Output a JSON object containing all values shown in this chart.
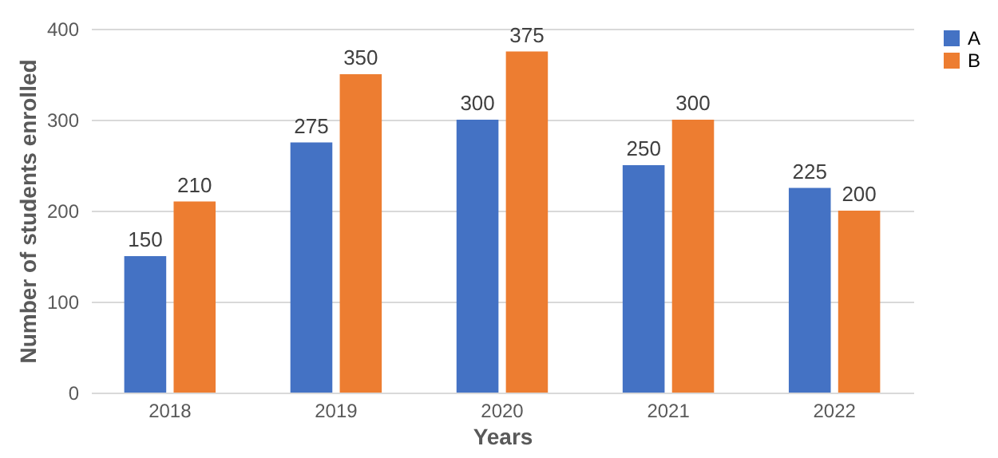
{
  "chart_data": {
    "type": "bar",
    "xlabel": "Years",
    "ylabel": "Number of students enrolled",
    "categories": [
      "2018",
      "2019",
      "2020",
      "2021",
      "2022"
    ],
    "series": [
      {
        "name": "A",
        "color": "#4472c4",
        "values": [
          150,
          275,
          300,
          250,
          225
        ]
      },
      {
        "name": "B",
        "color": "#ed7d31",
        "values": [
          210,
          350,
          375,
          300,
          200
        ]
      }
    ],
    "ylim": [
      0,
      400
    ],
    "yticks": [
      0,
      100,
      200,
      300,
      400
    ],
    "grid": "y",
    "legend": "right",
    "data_labels": true
  }
}
